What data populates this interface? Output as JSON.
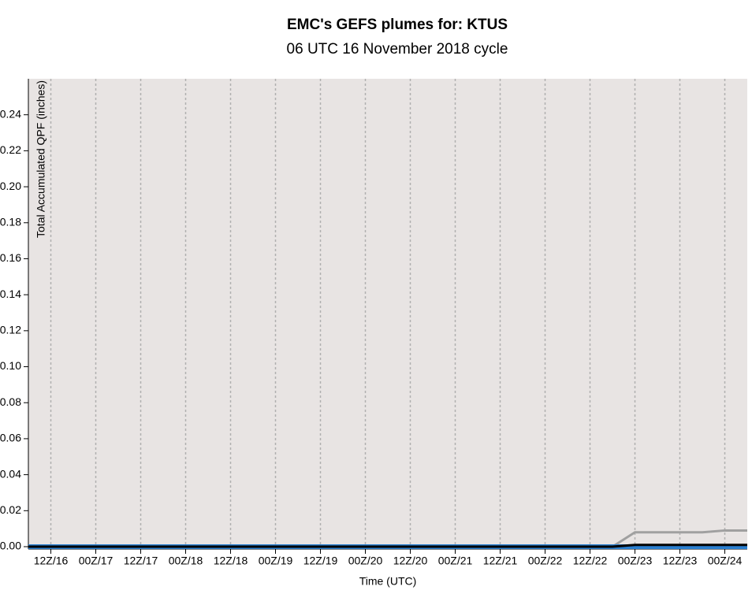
{
  "chart_data": {
    "type": "line",
    "title": "EMC's GEFS plumes for: KTUS",
    "subtitle": "06 UTC 16 November 2018 cycle",
    "y_label": "Total Accumulated QPF (inches)",
    "x_label": "Time (UTC)",
    "x": [
      0,
      6,
      12,
      18,
      24,
      30,
      36,
      42,
      48,
      54,
      60,
      66,
      72,
      78,
      84,
      90,
      96,
      102,
      108,
      114,
      120,
      126,
      132,
      138,
      144,
      150,
      156,
      162,
      168,
      174,
      180,
      186,
      192
    ],
    "series": [
      {
        "color": "#a0a0a0",
        "width": 3,
        "values": [
          0,
          0,
          0,
          0,
          0,
          0,
          0,
          0,
          0,
          0,
          0,
          0,
          0,
          0,
          0,
          0,
          0,
          0,
          0,
          0,
          0,
          0,
          0,
          0,
          0,
          0,
          0,
          0.008,
          0.008,
          0.008,
          0.008,
          0.009,
          0.009
        ]
      },
      {
        "color": "#2a7fd0",
        "width": 6,
        "values": [
          0,
          0,
          0,
          0,
          0,
          0,
          0,
          0,
          0,
          0,
          0,
          0,
          0,
          0,
          0,
          0,
          0,
          0,
          0,
          0,
          0,
          0,
          0,
          0,
          0,
          0,
          0,
          0,
          0,
          0,
          0,
          0,
          0
        ]
      },
      {
        "color": "#000000",
        "width": 3,
        "values": [
          0,
          0,
          0,
          0,
          0,
          0,
          0,
          0,
          0,
          0,
          0,
          0,
          0,
          0,
          0,
          0,
          0,
          0,
          0,
          0,
          0,
          0,
          0,
          0,
          0,
          0,
          0,
          0.001,
          0.001,
          0.001,
          0.001,
          0.001,
          0.001
        ]
      }
    ],
    "xlim": [
      0,
      192
    ],
    "xticks": [
      {
        "value": 6,
        "label": "12Z/16"
      },
      {
        "value": 18,
        "label": "00Z/17"
      },
      {
        "value": 30,
        "label": "12Z/17"
      },
      {
        "value": 42,
        "label": "00Z/18"
      },
      {
        "value": 54,
        "label": "12Z/18"
      },
      {
        "value": 66,
        "label": "00Z/19"
      },
      {
        "value": 78,
        "label": "12Z/19"
      },
      {
        "value": 90,
        "label": "00Z/20"
      },
      {
        "value": 102,
        "label": "12Z/20"
      },
      {
        "value": 114,
        "label": "00Z/21"
      },
      {
        "value": 126,
        "label": "12Z/21"
      },
      {
        "value": 138,
        "label": "00Z/22"
      },
      {
        "value": 150,
        "label": "12Z/22"
      },
      {
        "value": 162,
        "label": "00Z/23"
      },
      {
        "value": 174,
        "label": "12Z/23"
      },
      {
        "value": 186,
        "label": "00Z/24"
      }
    ],
    "ylim": [
      0,
      0.26
    ],
    "yticks": [
      {
        "value": 0,
        "label": "0.00"
      },
      {
        "value": 0.02,
        "label": "0.02"
      },
      {
        "value": 0.04,
        "label": "0.04"
      },
      {
        "value": 0.06,
        "label": "0.06"
      },
      {
        "value": 0.08,
        "label": "0.08"
      },
      {
        "value": 0.1,
        "label": "0.10"
      },
      {
        "value": 0.12,
        "label": "0.12"
      },
      {
        "value": 0.14,
        "label": "0.14"
      },
      {
        "value": 0.16,
        "label": "0.16"
      },
      {
        "value": 0.18,
        "label": "0.18"
      },
      {
        "value": 0.2,
        "label": "0.20"
      },
      {
        "value": 0.22,
        "label": "0.22"
      },
      {
        "value": 0.24,
        "label": "0.24"
      }
    ],
    "grid": true
  }
}
